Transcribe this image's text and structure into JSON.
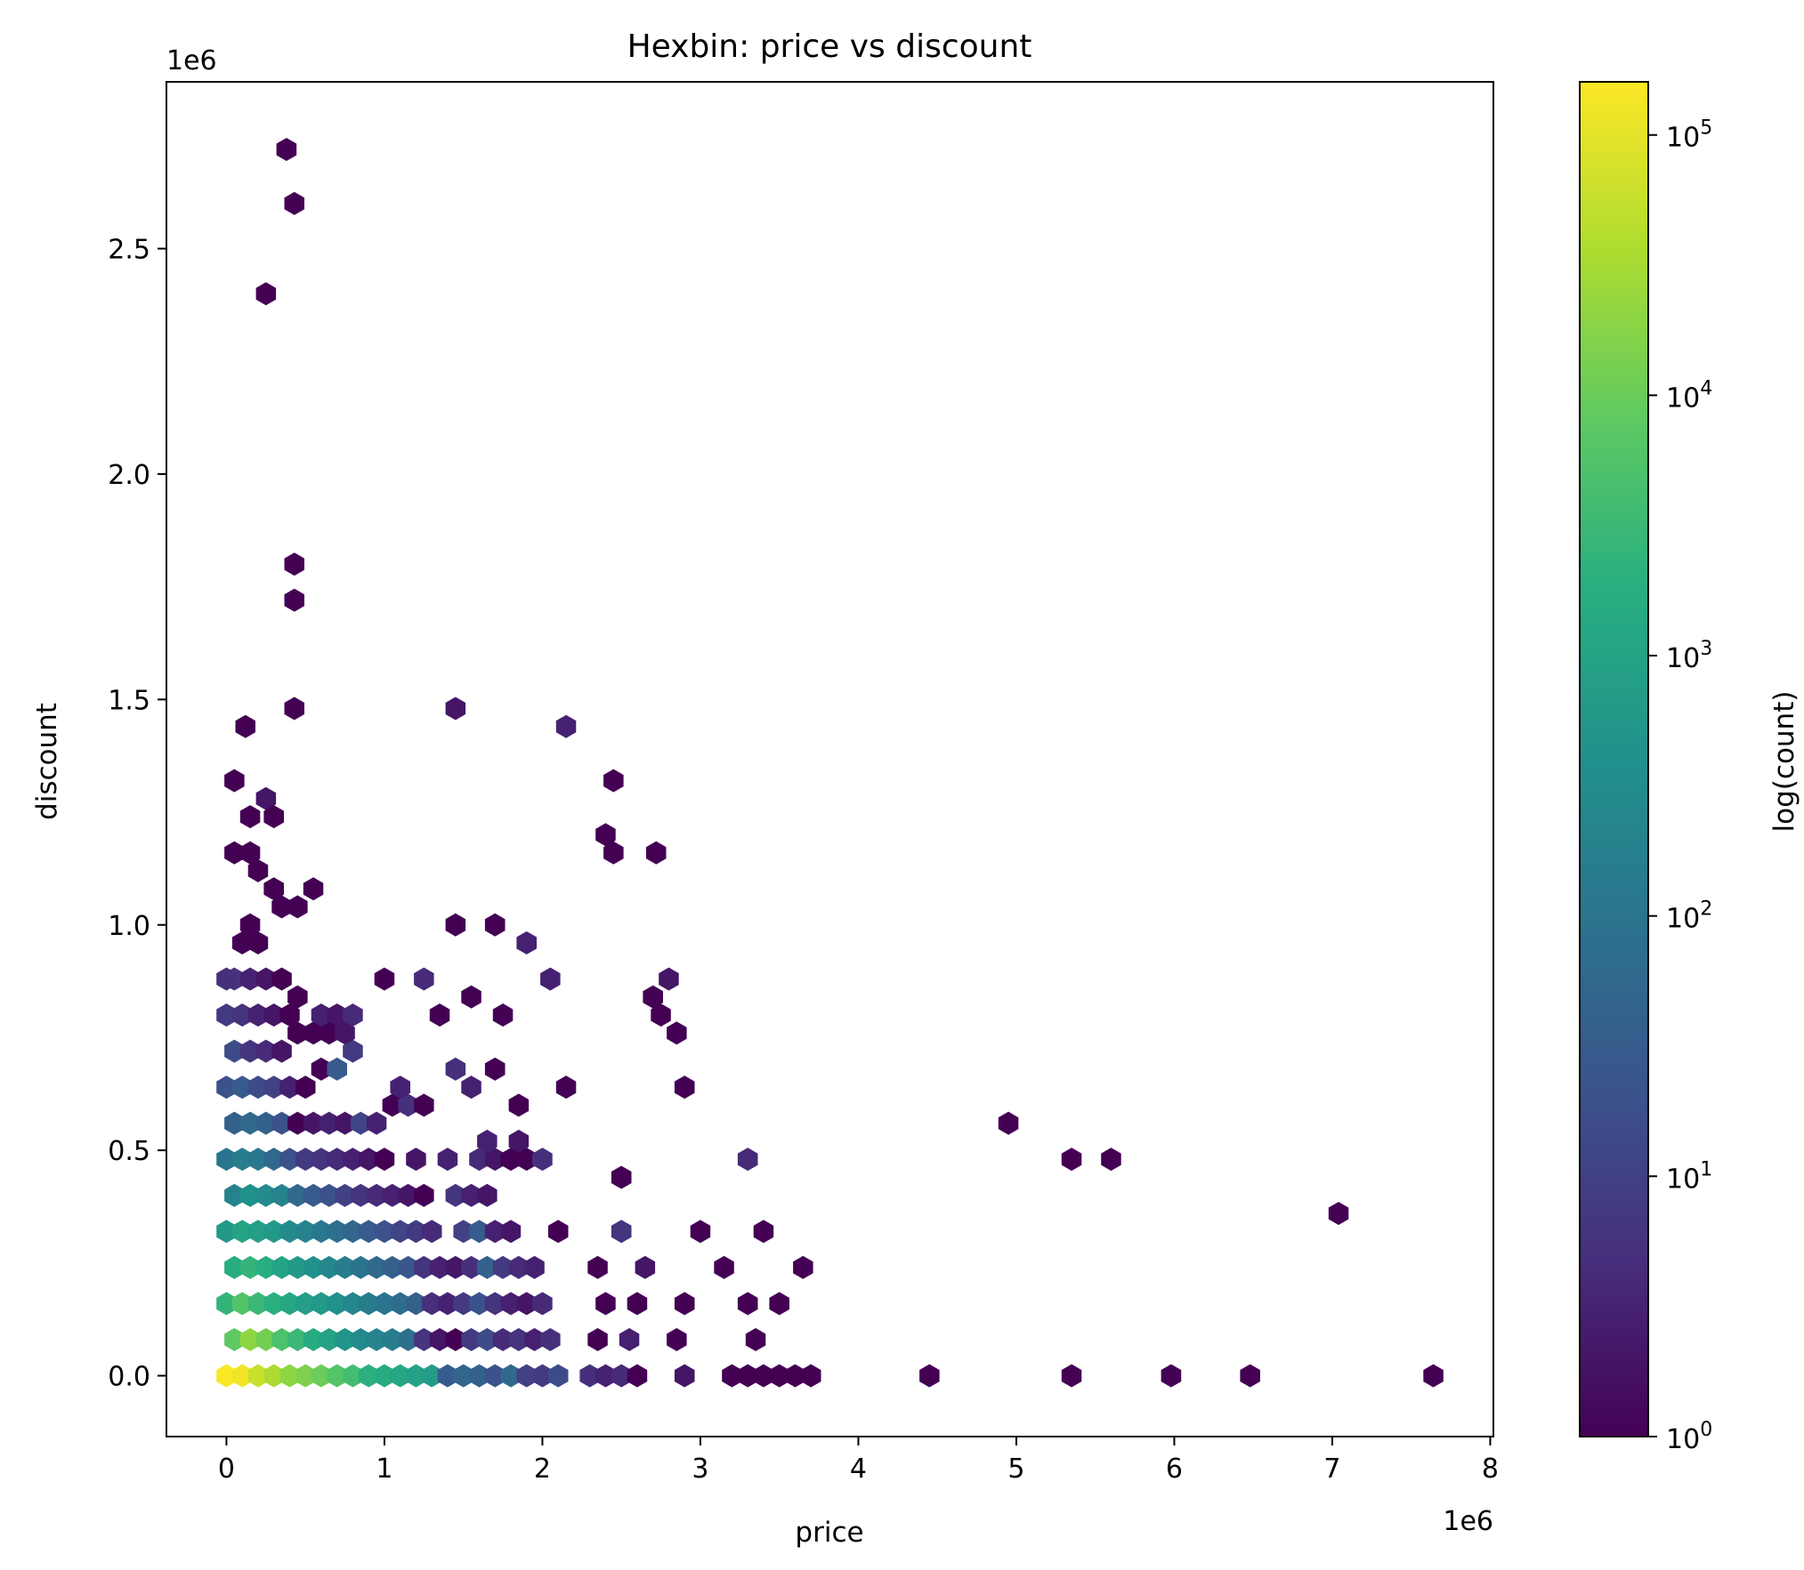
{
  "chart_data": {
    "type": "heatmap",
    "subtype": "hexbin",
    "title": "Hexbin: price vs discount",
    "xlabel": "price",
    "ylabel": "discount",
    "x_offset_label": "1e6",
    "y_offset_label": "1e6",
    "x_scale_factor": 1000000,
    "y_scale_factor": 1000000,
    "xlim": [
      -0.38,
      8.02
    ],
    "ylim": [
      -0.135,
      2.87
    ],
    "xticks": [
      0,
      1,
      2,
      3,
      4,
      5,
      6,
      7,
      8
    ],
    "xtick_labels": [
      "0",
      "1",
      "2",
      "3",
      "4",
      "5",
      "6",
      "7",
      "8"
    ],
    "yticks": [
      0.0,
      0.5,
      1.0,
      1.5,
      2.0,
      2.5
    ],
    "ytick_labels": [
      "0.0",
      "0.5",
      "1.0",
      "1.5",
      "2.0",
      "2.5"
    ],
    "grid": false,
    "colormap": "viridis",
    "colorbar": {
      "label": "log(count)",
      "scale": "log",
      "range": [
        1,
        160000
      ],
      "ticks": [
        1,
        10,
        100,
        1000,
        10000,
        100000
      ],
      "tick_bases": [
        "10",
        "10",
        "10",
        "10",
        "10",
        "10"
      ],
      "tick_exponents": [
        "0",
        "1",
        "2",
        "3",
        "4",
        "5"
      ]
    },
    "hex_columns": "each bin is [x, y, count] with x and y in millions",
    "bins": [
      [
        0.0,
        0.0,
        150000
      ],
      [
        0.1,
        0.0,
        130000
      ],
      [
        0.2,
        0.0,
        60000
      ],
      [
        0.3,
        0.0,
        35000
      ],
      [
        0.4,
        0.0,
        20000
      ],
      [
        0.5,
        0.0,
        15000
      ],
      [
        0.6,
        0.0,
        10000
      ],
      [
        0.7,
        0.0,
        6000
      ],
      [
        0.8,
        0.0,
        4000
      ],
      [
        0.9,
        0.0,
        2000
      ],
      [
        1.0,
        0.0,
        1500
      ],
      [
        1.1,
        0.0,
        1200
      ],
      [
        1.2,
        0.0,
        900
      ],
      [
        1.3,
        0.0,
        700
      ],
      [
        1.4,
        0.0,
        30
      ],
      [
        1.5,
        0.0,
        50
      ],
      [
        1.6,
        0.0,
        40
      ],
      [
        1.7,
        0.0,
        20
      ],
      [
        1.8,
        0.0,
        60
      ],
      [
        1.9,
        0.0,
        10
      ],
      [
        2.0,
        0.0,
        8
      ],
      [
        2.1,
        0.0,
        15
      ],
      [
        2.3,
        0.0,
        5
      ],
      [
        2.4,
        0.0,
        3
      ],
      [
        2.5,
        0.0,
        4
      ],
      [
        2.6,
        0.0,
        1
      ],
      [
        2.9,
        0.0,
        2
      ],
      [
        3.2,
        0.0,
        1
      ],
      [
        3.3,
        0.0,
        1
      ],
      [
        3.4,
        0.0,
        1
      ],
      [
        3.5,
        0.0,
        1
      ],
      [
        3.6,
        0.0,
        1
      ],
      [
        3.7,
        0.0,
        1
      ],
      [
        4.45,
        0.0,
        1
      ],
      [
        5.35,
        0.0,
        1
      ],
      [
        5.98,
        0.0,
        1
      ],
      [
        6.48,
        0.0,
        1
      ],
      [
        7.64,
        0.0,
        1
      ],
      [
        0.05,
        0.08,
        8000
      ],
      [
        0.15,
        0.08,
        20000
      ],
      [
        0.25,
        0.08,
        12000
      ],
      [
        0.35,
        0.08,
        5000
      ],
      [
        0.45,
        0.08,
        3000
      ],
      [
        0.55,
        0.08,
        1500
      ],
      [
        0.65,
        0.08,
        900
      ],
      [
        0.75,
        0.08,
        500
      ],
      [
        0.85,
        0.08,
        300
      ],
      [
        0.95,
        0.08,
        200
      ],
      [
        1.05,
        0.08,
        150
      ],
      [
        1.15,
        0.08,
        80
      ],
      [
        1.25,
        0.08,
        6
      ],
      [
        1.35,
        0.08,
        2
      ],
      [
        1.45,
        0.08,
        1
      ],
      [
        1.55,
        0.08,
        8
      ],
      [
        1.65,
        0.08,
        15
      ],
      [
        1.75,
        0.08,
        4
      ],
      [
        1.85,
        0.08,
        6
      ],
      [
        1.95,
        0.08,
        3
      ],
      [
        2.05,
        0.08,
        5
      ],
      [
        2.35,
        0.08,
        1
      ],
      [
        2.55,
        0.08,
        3
      ],
      [
        2.85,
        0.08,
        1
      ],
      [
        3.35,
        0.08,
        1
      ],
      [
        0.0,
        0.16,
        2500
      ],
      [
        0.1,
        0.16,
        6000
      ],
      [
        0.2,
        0.16,
        3000
      ],
      [
        0.3,
        0.16,
        2000
      ],
      [
        0.4,
        0.16,
        1200
      ],
      [
        0.5,
        0.16,
        800
      ],
      [
        0.6,
        0.16,
        600
      ],
      [
        0.7,
        0.16,
        400
      ],
      [
        0.8,
        0.16,
        250
      ],
      [
        0.9,
        0.16,
        150
      ],
      [
        1.0,
        0.16,
        100
      ],
      [
        1.1,
        0.16,
        70
      ],
      [
        1.2,
        0.16,
        40
      ],
      [
        1.3,
        0.16,
        5
      ],
      [
        1.4,
        0.16,
        3
      ],
      [
        1.5,
        0.16,
        8
      ],
      [
        1.6,
        0.16,
        20
      ],
      [
        1.7,
        0.16,
        6
      ],
      [
        1.8,
        0.16,
        3
      ],
      [
        1.9,
        0.16,
        2
      ],
      [
        2.0,
        0.16,
        4
      ],
      [
        2.4,
        0.16,
        1
      ],
      [
        2.6,
        0.16,
        1
      ],
      [
        2.9,
        0.16,
        1
      ],
      [
        3.3,
        0.16,
        1
      ],
      [
        3.5,
        0.16,
        1
      ],
      [
        0.05,
        0.24,
        1500
      ],
      [
        0.15,
        0.24,
        2500
      ],
      [
        0.25,
        0.24,
        1800
      ],
      [
        0.35,
        0.24,
        1000
      ],
      [
        0.45,
        0.24,
        600
      ],
      [
        0.55,
        0.24,
        400
      ],
      [
        0.65,
        0.24,
        250
      ],
      [
        0.75,
        0.24,
        150
      ],
      [
        0.85,
        0.24,
        100
      ],
      [
        0.95,
        0.24,
        60
      ],
      [
        1.05,
        0.24,
        40
      ],
      [
        1.15,
        0.24,
        25
      ],
      [
        1.25,
        0.24,
        6
      ],
      [
        1.35,
        0.24,
        3
      ],
      [
        1.45,
        0.24,
        2
      ],
      [
        1.55,
        0.24,
        5
      ],
      [
        1.65,
        0.24,
        40
      ],
      [
        1.75,
        0.24,
        8
      ],
      [
        1.85,
        0.24,
        4
      ],
      [
        1.95,
        0.24,
        3
      ],
      [
        2.35,
        0.24,
        1
      ],
      [
        2.65,
        0.24,
        2
      ],
      [
        3.15,
        0.24,
        1
      ],
      [
        3.65,
        0.24,
        1
      ],
      [
        0.0,
        0.32,
        600
      ],
      [
        0.1,
        0.32,
        1000
      ],
      [
        0.2,
        0.32,
        800
      ],
      [
        0.3,
        0.32,
        600
      ],
      [
        0.4,
        0.32,
        300
      ],
      [
        0.5,
        0.32,
        200
      ],
      [
        0.6,
        0.32,
        120
      ],
      [
        0.7,
        0.32,
        80
      ],
      [
        0.8,
        0.32,
        50
      ],
      [
        0.9,
        0.32,
        30
      ],
      [
        1.0,
        0.32,
        20
      ],
      [
        1.1,
        0.32,
        12
      ],
      [
        1.2,
        0.32,
        8
      ],
      [
        1.3,
        0.32,
        4
      ],
      [
        1.5,
        0.32,
        10
      ],
      [
        1.6,
        0.32,
        30
      ],
      [
        1.7,
        0.32,
        3
      ],
      [
        1.8,
        0.32,
        2
      ],
      [
        2.1,
        0.32,
        1
      ],
      [
        2.5,
        0.32,
        6
      ],
      [
        3.0,
        0.32,
        1
      ],
      [
        3.4,
        0.32,
        1
      ],
      [
        7.04,
        0.36,
        1
      ],
      [
        0.05,
        0.4,
        200
      ],
      [
        0.15,
        0.4,
        400
      ],
      [
        0.25,
        0.4,
        300
      ],
      [
        0.35,
        0.4,
        200
      ],
      [
        0.45,
        0.4,
        60
      ],
      [
        0.55,
        0.4,
        30
      ],
      [
        0.65,
        0.4,
        20
      ],
      [
        0.75,
        0.4,
        10
      ],
      [
        0.85,
        0.4,
        6
      ],
      [
        0.95,
        0.4,
        4
      ],
      [
        1.05,
        0.4,
        3
      ],
      [
        1.15,
        0.4,
        2
      ],
      [
        1.25,
        0.4,
        1
      ],
      [
        1.45,
        0.4,
        6
      ],
      [
        1.55,
        0.4,
        3
      ],
      [
        1.65,
        0.4,
        2
      ],
      [
        0.0,
        0.48,
        100
      ],
      [
        0.1,
        0.48,
        150
      ],
      [
        0.2,
        0.48,
        120
      ],
      [
        0.3,
        0.48,
        60
      ],
      [
        0.4,
        0.48,
        20
      ],
      [
        0.5,
        0.48,
        8
      ],
      [
        0.6,
        0.48,
        6
      ],
      [
        0.7,
        0.48,
        4
      ],
      [
        0.8,
        0.48,
        3
      ],
      [
        0.9,
        0.48,
        2
      ],
      [
        1.0,
        0.48,
        1
      ],
      [
        1.2,
        0.48,
        2
      ],
      [
        1.4,
        0.48,
        3
      ],
      [
        1.6,
        0.48,
        4
      ],
      [
        1.7,
        0.48,
        2
      ],
      [
        1.8,
        0.48,
        1
      ],
      [
        1.9,
        0.48,
        1
      ],
      [
        2.0,
        0.48,
        5
      ],
      [
        2.5,
        0.44,
        1
      ],
      [
        3.3,
        0.48,
        4
      ],
      [
        5.35,
        0.48,
        1
      ],
      [
        5.6,
        0.48,
        1
      ],
      [
        0.05,
        0.56,
        40
      ],
      [
        0.15,
        0.56,
        60
      ],
      [
        0.25,
        0.56,
        40
      ],
      [
        0.35,
        0.56,
        20
      ],
      [
        0.45,
        0.56,
        1
      ],
      [
        0.55,
        0.56,
        2
      ],
      [
        0.65,
        0.56,
        3
      ],
      [
        0.75,
        0.56,
        2
      ],
      [
        0.85,
        0.56,
        12
      ],
      [
        0.95,
        0.56,
        3
      ],
      [
        1.05,
        0.6,
        1
      ],
      [
        1.15,
        0.6,
        5
      ],
      [
        1.25,
        0.6,
        1
      ],
      [
        1.65,
        0.52,
        3
      ],
      [
        1.85,
        0.52,
        2
      ],
      [
        4.95,
        0.56,
        1
      ],
      [
        0.0,
        0.64,
        20
      ],
      [
        0.1,
        0.64,
        30
      ],
      [
        0.2,
        0.64,
        15
      ],
      [
        0.3,
        0.64,
        10
      ],
      [
        0.4,
        0.64,
        3
      ],
      [
        0.5,
        0.64,
        1
      ],
      [
        0.6,
        0.68,
        1
      ],
      [
        0.7,
        0.68,
        30
      ],
      [
        0.8,
        0.72,
        8
      ],
      [
        1.1,
        0.64,
        3
      ],
      [
        1.45,
        0.68,
        5
      ],
      [
        1.55,
        0.64,
        3
      ],
      [
        1.7,
        0.68,
        1
      ],
      [
        1.85,
        0.6,
        1
      ],
      [
        2.15,
        0.64,
        1
      ],
      [
        2.9,
        0.64,
        1
      ],
      [
        0.05,
        0.72,
        15
      ],
      [
        0.15,
        0.72,
        6
      ],
      [
        0.25,
        0.72,
        4
      ],
      [
        0.35,
        0.72,
        2
      ],
      [
        0.45,
        0.76,
        1
      ],
      [
        0.55,
        0.76,
        1
      ],
      [
        0.65,
        0.76,
        1
      ],
      [
        0.75,
        0.76,
        2
      ],
      [
        1.35,
        0.8,
        1
      ],
      [
        1.75,
        0.8,
        1
      ],
      [
        2.85,
        0.76,
        1
      ],
      [
        0.0,
        0.8,
        8
      ],
      [
        0.1,
        0.8,
        6
      ],
      [
        0.2,
        0.8,
        3
      ],
      [
        0.3,
        0.8,
        2
      ],
      [
        0.4,
        0.8,
        1
      ],
      [
        0.6,
        0.8,
        3
      ],
      [
        0.7,
        0.8,
        2
      ],
      [
        0.8,
        0.8,
        4
      ],
      [
        1.55,
        0.84,
        1
      ],
      [
        2.75,
        0.8,
        1
      ],
      [
        2.7,
        0.84,
        1
      ],
      [
        2.8,
        0.88,
        2
      ],
      [
        0.05,
        0.88,
        6
      ],
      [
        0.15,
        0.88,
        3
      ],
      [
        0.25,
        0.88,
        2
      ],
      [
        0.35,
        0.88,
        1
      ],
      [
        0.45,
        0.84,
        1
      ],
      [
        0.0,
        0.88,
        5
      ],
      [
        1.0,
        0.88,
        1
      ],
      [
        1.25,
        0.88,
        4
      ],
      [
        2.05,
        0.88,
        3
      ],
      [
        1.9,
        0.96,
        3
      ],
      [
        0.1,
        0.96,
        1
      ],
      [
        0.2,
        0.96,
        1
      ],
      [
        0.15,
        1.0,
        1
      ],
      [
        1.45,
        1.0,
        1
      ],
      [
        1.7,
        1.0,
        1
      ],
      [
        0.05,
        1.16,
        1
      ],
      [
        0.15,
        1.16,
        1
      ],
      [
        0.2,
        1.12,
        1
      ],
      [
        0.3,
        1.08,
        1
      ],
      [
        0.35,
        1.04,
        1
      ],
      [
        0.45,
        1.04,
        1
      ],
      [
        0.55,
        1.08,
        1
      ],
      [
        2.45,
        1.16,
        1
      ],
      [
        2.4,
        1.2,
        1
      ],
      [
        2.72,
        1.16,
        1
      ],
      [
        0.15,
        1.24,
        1
      ],
      [
        0.25,
        1.28,
        2
      ],
      [
        0.3,
        1.24,
        1
      ],
      [
        0.05,
        1.32,
        1
      ],
      [
        2.45,
        1.32,
        1
      ],
      [
        0.12,
        1.44,
        1
      ],
      [
        2.15,
        1.44,
        3
      ],
      [
        0.43,
        1.48,
        1
      ],
      [
        1.45,
        1.48,
        2
      ],
      [
        0.43,
        1.72,
        1
      ],
      [
        0.43,
        1.8,
        1
      ],
      [
        0.25,
        2.4,
        1
      ],
      [
        0.43,
        2.6,
        1
      ],
      [
        0.38,
        2.72,
        1
      ]
    ]
  }
}
